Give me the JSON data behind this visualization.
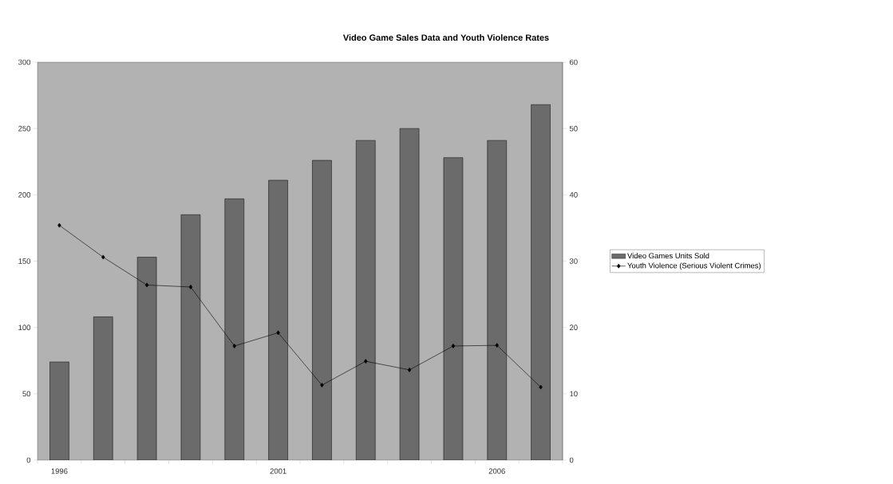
{
  "chart_data": {
    "type": "bar",
    "title": "Video Game Sales Data and Youth Violence Rates",
    "categories": [
      "1996",
      null,
      null,
      null,
      null,
      "2001",
      null,
      null,
      null,
      null,
      "2006",
      null
    ],
    "series": [
      {
        "name": "Video Games Units Sold",
        "color": "#6b6b6b",
        "values": [
          74,
          108,
          153,
          185,
          197,
          211,
          226,
          241,
          250,
          228,
          241,
          268
        ]
      },
      {
        "name": "Youth Violence (Serious Violent Crimes)",
        "type": "line",
        "axis": "y2",
        "color": "#000000",
        "marker": "diamond",
        "values": [
          35.4,
          30.6,
          26.4,
          26.1,
          17.2,
          19.2,
          11.3,
          14.9,
          13.6,
          17.2,
          17.3,
          11.0
        ]
      }
    ],
    "ylim": [
      0,
      300
    ],
    "yticks": [
      0,
      50,
      100,
      150,
      200,
      250,
      300
    ],
    "y2lim": [
      0,
      60
    ],
    "y2ticks": [
      0,
      10,
      20,
      30,
      40,
      50,
      60
    ],
    "legend": "right"
  }
}
